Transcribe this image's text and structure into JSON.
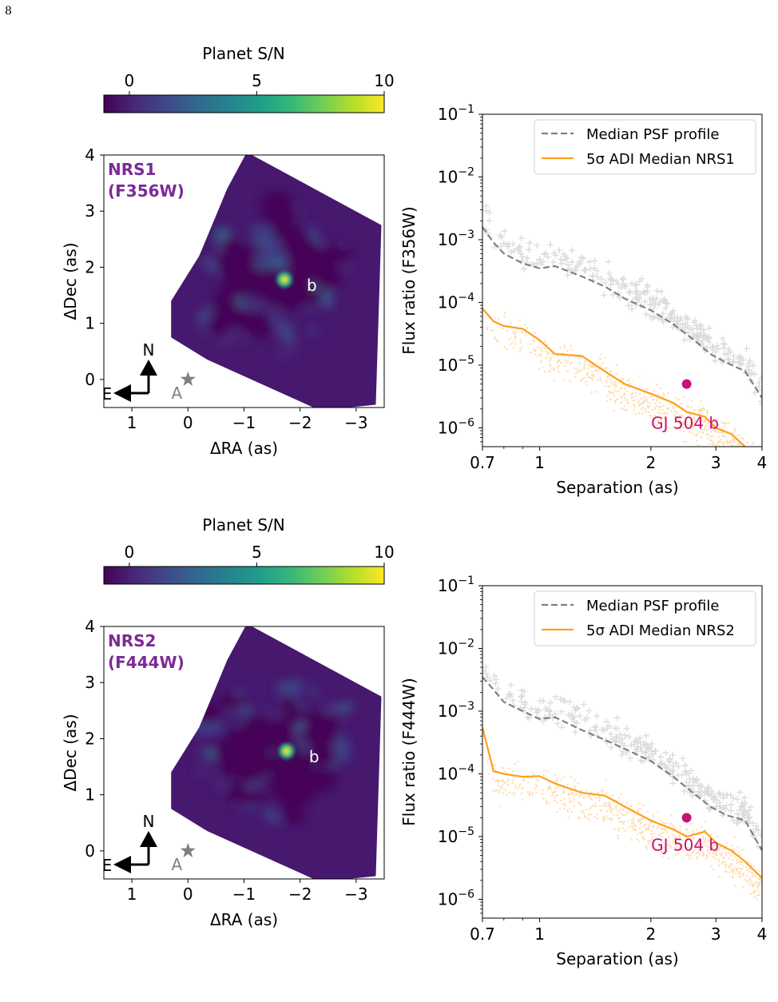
{
  "page_number": "8",
  "colors": {
    "viridis": [
      "#440154",
      "#482878",
      "#3e4989",
      "#31688e",
      "#26828e",
      "#1f9e89",
      "#35b779",
      "#6ece58",
      "#b5de2b",
      "#fde725"
    ],
    "psf_line": "#808080",
    "adi_line": "#ff9f1c",
    "planet_marker": "#c8127a",
    "label_purple": "#7b2a96",
    "star_grey": "#808080"
  },
  "panels": [
    {
      "colorbar": {
        "label": "Planet S/N",
        "ticks": [
          "0",
          "5",
          "10"
        ],
        "values": [
          0,
          5,
          10
        ],
        "range": [
          -1,
          10
        ]
      },
      "image": {
        "label_line1": "NRS1",
        "label_line2": "(F356W)",
        "xlabel": "ΔRA (as)",
        "ylabel": "ΔDec (as)",
        "xticks": [
          "1",
          "0",
          "−1",
          "−2",
          "−3"
        ],
        "xtick_values": [
          1,
          0,
          -1,
          -2,
          -3
        ],
        "yticks": [
          "4",
          "3",
          "2",
          "1",
          "0"
        ],
        "ytick_values": [
          4,
          3,
          2,
          1,
          0
        ],
        "xlim": [
          1.5,
          -3.5
        ],
        "ylim": [
          -0.5,
          4
        ],
        "planet_label": "b",
        "star_label": "A",
        "north_label": "N",
        "east_label": "E",
        "planet_pos": [
          -1.72,
          1.78
        ]
      },
      "contrast": {
        "ylabel": "Flux ratio (F356W)",
        "xlabel": "Separation (as)",
        "xticks": [
          "0.7",
          "1",
          "2",
          "3",
          "4"
        ],
        "xtick_values": [
          0.7,
          1,
          2,
          3,
          4
        ],
        "yticks": [
          "10−1",
          "10−2",
          "10−3",
          "10−4",
          "10−5",
          "10−6"
        ],
        "ytick_exponents": [
          -1,
          -2,
          -3,
          -4,
          -5,
          -6
        ],
        "xlim": [
          0.7,
          4
        ],
        "ylim_log10": [
          -6.3,
          -1
        ],
        "legend": [
          {
            "label": "Median PSF profile"
          },
          {
            "label": "5σ ADI Median NRS1"
          }
        ],
        "planet_label": "GJ 504 b",
        "planet_point": {
          "x": 2.5,
          "y": 5e-06
        }
      }
    },
    {
      "colorbar": {
        "label": "Planet S/N",
        "ticks": [
          "0",
          "5",
          "10"
        ],
        "values": [
          0,
          5,
          10
        ],
        "range": [
          -1,
          10
        ]
      },
      "image": {
        "label_line1": "NRS2",
        "label_line2": "(F444W)",
        "xlabel": "ΔRA (as)",
        "ylabel": "ΔDec (as)",
        "xticks": [
          "1",
          "0",
          "−1",
          "−2",
          "−3"
        ],
        "xtick_values": [
          1,
          0,
          -1,
          -2,
          -3
        ],
        "yticks": [
          "4",
          "3",
          "2",
          "1",
          "0"
        ],
        "ytick_values": [
          4,
          3,
          2,
          1,
          0
        ],
        "xlim": [
          1.5,
          -3.5
        ],
        "ylim": [
          -0.5,
          4
        ],
        "planet_label": "b",
        "star_label": "A",
        "north_label": "N",
        "east_label": "E",
        "planet_pos": [
          -1.76,
          1.78
        ]
      },
      "contrast": {
        "ylabel": "Flux ratio (F444W)",
        "xlabel": "Separation (as)",
        "xticks": [
          "0.7",
          "1",
          "2",
          "3",
          "4"
        ],
        "xtick_values": [
          0.7,
          1,
          2,
          3,
          4
        ],
        "yticks": [
          "10−1",
          "10−2",
          "10−3",
          "10−4",
          "10−5",
          "10−6"
        ],
        "ytick_exponents": [
          -1,
          -2,
          -3,
          -4,
          -5,
          -6
        ],
        "xlim": [
          0.7,
          4
        ],
        "ylim_log10": [
          -6.3,
          -1
        ],
        "legend": [
          {
            "label": "Median PSF profile"
          },
          {
            "label": "5σ ADI Median NRS2"
          }
        ],
        "planet_label": "GJ 504 b",
        "planet_point": {
          "x": 2.5,
          "y": 2e-05
        }
      }
    }
  ],
  "chart_data": [
    {
      "type": "line",
      "title": "",
      "xlabel": "Separation (as)",
      "ylabel": "Flux ratio (F356W)",
      "xscale": "log",
      "yscale": "log",
      "xlim": [
        0.7,
        4
      ],
      "ylim": [
        5e-07,
        0.1
      ],
      "legend_position": "top-right",
      "series": [
        {
          "name": "Median PSF profile",
          "style": "dashed",
          "x": [
            0.7,
            0.75,
            0.8,
            0.9,
            1.0,
            1.1,
            1.3,
            1.5,
            1.7,
            2.0,
            2.3,
            2.6,
            2.9,
            3.2,
            3.6,
            4.0
          ],
          "y": [
            0.0016,
            0.0009,
            0.0006,
            0.00042,
            0.00035,
            0.00038,
            0.00026,
            0.00018,
            0.000115,
            7.5e-05,
            4.5e-05,
            2.6e-05,
            1.5e-05,
            1.1e-05,
            8e-06,
            3e-06
          ]
        },
        {
          "name": "5σ ADI Median NRS1",
          "style": "solid",
          "x": [
            0.7,
            0.75,
            0.8,
            0.9,
            1.0,
            1.1,
            1.3,
            1.5,
            1.7,
            2.0,
            2.3,
            2.5,
            2.8,
            3.0,
            3.3,
            3.6,
            4.0
          ],
          "y": [
            8e-05,
            5e-05,
            4.2e-05,
            3.8e-05,
            2.5e-05,
            1.5e-05,
            1.4e-05,
            8e-06,
            5e-06,
            3.5e-06,
            2.5e-06,
            1.8e-06,
            1.5e-06,
            1e-06,
            8e-07,
            5e-07,
            3.5e-07
          ]
        }
      ],
      "annotations": [
        {
          "text": "GJ 504 b",
          "x": 2.5,
          "y": 5e-06
        }
      ]
    },
    {
      "type": "line",
      "title": "",
      "xlabel": "Separation (as)",
      "ylabel": "Flux ratio (F444W)",
      "xscale": "log",
      "yscale": "log",
      "xlim": [
        0.7,
        4
      ],
      "ylim": [
        5e-07,
        0.1
      ],
      "legend_position": "top-right",
      "series": [
        {
          "name": "Median PSF profile",
          "style": "dashed",
          "x": [
            0.7,
            0.75,
            0.8,
            0.9,
            1.0,
            1.1,
            1.3,
            1.5,
            1.7,
            2.0,
            2.3,
            2.6,
            2.9,
            3.2,
            3.6,
            4.0
          ],
          "y": [
            0.0035,
            0.0022,
            0.0014,
            0.001,
            0.00075,
            0.0008,
            0.0005,
            0.00035,
            0.00025,
            0.00016,
            9e-05,
            5e-05,
            3e-05,
            2.2e-05,
            1.8e-05,
            6e-06
          ]
        },
        {
          "name": "5σ ADI Median NRS2",
          "style": "solid",
          "x": [
            0.7,
            0.75,
            0.8,
            0.9,
            1.0,
            1.1,
            1.3,
            1.5,
            1.7,
            2.0,
            2.3,
            2.5,
            2.8,
            3.0,
            3.3,
            3.6,
            4.0
          ],
          "y": [
            0.00055,
            0.00011,
            0.0001,
            9e-05,
            9.2e-05,
            7e-05,
            5e-05,
            4.5e-05,
            3e-05,
            1.8e-05,
            1.3e-05,
            1e-05,
            1.2e-05,
            8e-06,
            6e-06,
            4e-06,
            2.2e-06
          ]
        }
      ],
      "annotations": [
        {
          "text": "GJ 504 b",
          "x": 2.5,
          "y": 2e-05
        }
      ]
    }
  ]
}
